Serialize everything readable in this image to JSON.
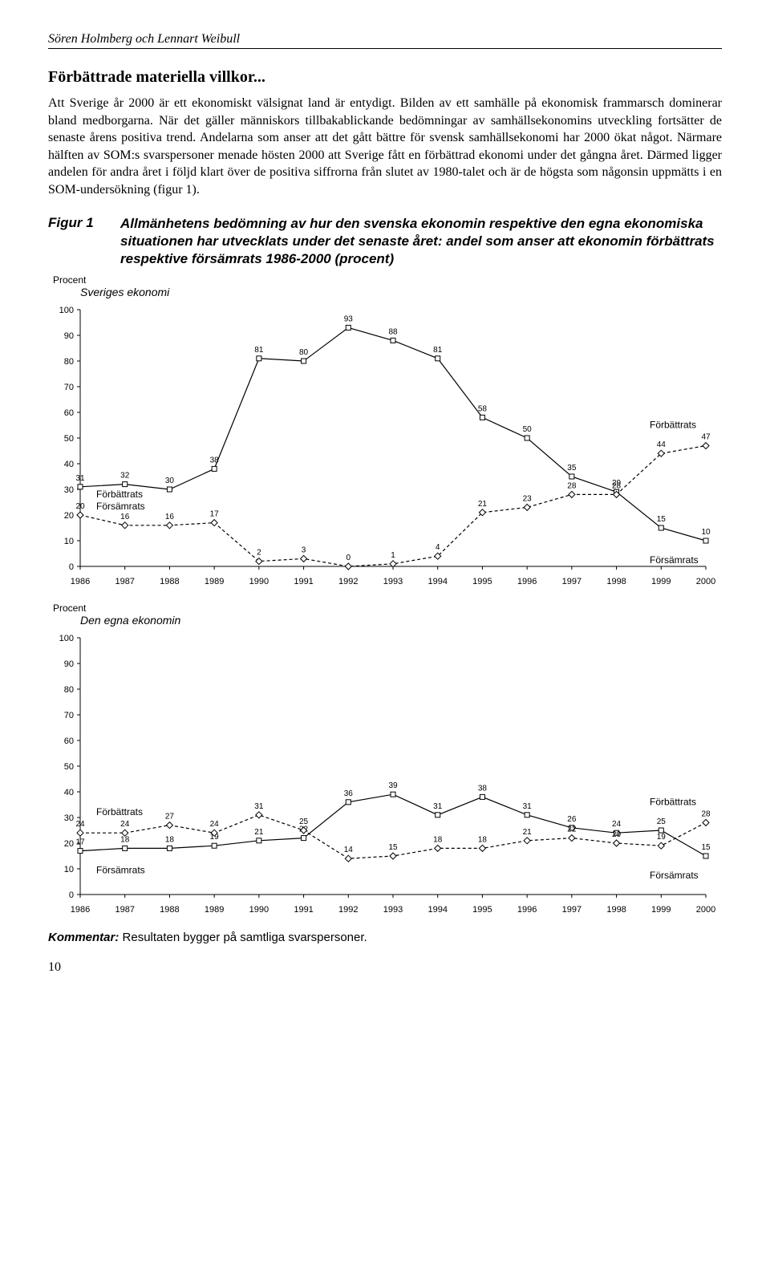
{
  "header": {
    "authors": "Sören Holmberg och Lennart Weibull"
  },
  "section_title": "Förbättrade materiella villkor...",
  "body_text": "Att Sverige år 2000 är ett ekonomiskt välsignat land är entydigt. Bilden av ett samhälle på ekonomisk frammarsch dominerar bland medborgarna. När det gäller människors tillbakablickande bedömningar av samhällsekonomins utveckling fortsätter de senaste årens positiva trend. Andelarna som anser att det gått bättre för svensk samhällsekonomi har 2000 ökat något. Närmare hälften av SOM:s svarspersoner menade hösten 2000 att Sverige fått en förbättrad ekonomi under det gångna året. Därmed ligger andelen för andra året i följd klart över de positiva siffrorna från slutet av 1980-talet och är de högsta som någonsin uppmätts i en SOM-undersökning (figur 1).",
  "figure": {
    "label": "Figur 1",
    "caption": "Allmänhetens bedömning av hur den svenska ekonomin respektive den egna ekonomiska situationen har utvecklats under det senaste året: andel som anser att ekonomin förbättrats respektive försämrats 1986-2000 (procent)"
  },
  "chart1": {
    "type": "line",
    "y_label": "Procent",
    "subtitle": "Sveriges ekonomi",
    "years": [
      1986,
      1987,
      1988,
      1989,
      1990,
      1991,
      1992,
      1993,
      1994,
      1995,
      1996,
      1997,
      1998,
      1999,
      2000
    ],
    "series": {
      "forsamrats": {
        "label": "Försämrats",
        "values": [
          31,
          32,
          30,
          38,
          81,
          80,
          93,
          88,
          81,
          58,
          50,
          35,
          29,
          15,
          10
        ],
        "marker": "square",
        "color": "#000000",
        "line_style": "solid"
      },
      "forbattrats": {
        "label": "Förbättrats",
        "values": [
          20,
          16,
          16,
          17,
          2,
          3,
          0,
          1,
          4,
          21,
          23,
          28,
          28,
          44,
          47
        ],
        "marker": "diamond",
        "color": "#000000",
        "line_style": "dashed"
      }
    },
    "ylim": [
      0,
      100
    ],
    "ytick_step": 10,
    "series_label_left_top": "Förbättrats",
    "series_label_left_bottom": "Försämrats",
    "series_label_right_top": "Förbättrats",
    "series_label_right_bottom": "Försämrats"
  },
  "chart2": {
    "type": "line",
    "y_label": "Procent",
    "subtitle": "Den egna ekonomin",
    "years": [
      1986,
      1987,
      1988,
      1989,
      1990,
      1991,
      1992,
      1993,
      1994,
      1995,
      1996,
      1997,
      1998,
      1999,
      2000
    ],
    "series": {
      "forsamrats": {
        "label": "Försämrats",
        "values": [
          17,
          18,
          18,
          19,
          21,
          22,
          36,
          39,
          31,
          38,
          31,
          26,
          24,
          25,
          15
        ],
        "marker": "square",
        "color": "#000000",
        "line_style": "solid"
      },
      "forbattrats": {
        "label": "Förbättrats",
        "values": [
          24,
          24,
          27,
          24,
          31,
          25,
          14,
          15,
          18,
          18,
          21,
          22,
          20,
          19,
          28
        ],
        "marker": "diamond",
        "color": "#000000",
        "line_style": "dashed"
      }
    },
    "ylim": [
      0,
      100
    ],
    "ytick_step": 10,
    "series_label_left_top": "Förbättrats",
    "series_label_left_bottom": "Försämrats",
    "series_label_right_top": "Förbättrats",
    "series_label_right_bottom": "Försämrats"
  },
  "kommentar": {
    "label": "Kommentar:",
    "text": "Resultaten bygger på samtliga svarspersoner."
  },
  "page_number": "10"
}
